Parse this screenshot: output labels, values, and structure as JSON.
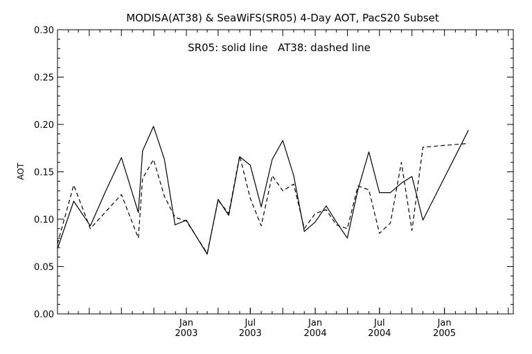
{
  "chart_data": {
    "type": "line",
    "title": "MODISA(AT38) & SeaWiFS(SR05) 4-Day AOT, PacS20 Subset",
    "annotation": "SR05: solid line   AT38: dashed line",
    "xlabel": "",
    "ylabel": "AOT",
    "ylim": [
      0.0,
      0.3
    ],
    "yticks": [
      "0.00",
      "0.05",
      "0.10",
      "0.15",
      "0.20",
      "0.25",
      "0.30"
    ],
    "xlim": [
      "2002-01-01",
      "2005-07-15"
    ],
    "xticks": [
      {
        "date": "2003-01-01",
        "month": "Jan",
        "year": "2003"
      },
      {
        "date": "2003-07-01",
        "month": "Jul",
        "year": "2003"
      },
      {
        "date": "2004-01-01",
        "month": "Jan",
        "year": "2004"
      },
      {
        "date": "2004-07-01",
        "month": "Jul",
        "year": "2004"
      },
      {
        "date": "2005-01-01",
        "month": "Jan",
        "year": "2005"
      }
    ],
    "grid": false,
    "series": [
      {
        "name": "SR05",
        "style": "solid",
        "points": [
          [
            "2002-01-01",
            0.069
          ],
          [
            "2002-02-16",
            0.119
          ],
          [
            "2002-04-04",
            0.093
          ],
          [
            "2002-05-18",
            0.13
          ],
          [
            "2002-07-01",
            0.165
          ],
          [
            "2002-08-18",
            0.107
          ],
          [
            "2002-08-30",
            0.172
          ],
          [
            "2002-09-30",
            0.198
          ],
          [
            "2002-10-31",
            0.163
          ],
          [
            "2002-11-30",
            0.094
          ],
          [
            "2003-01-01",
            0.099
          ],
          [
            "2003-03-01",
            0.063
          ],
          [
            "2003-04-01",
            0.121
          ],
          [
            "2003-05-01",
            0.104
          ],
          [
            "2003-06-01",
            0.166
          ],
          [
            "2003-07-01",
            0.157
          ],
          [
            "2003-08-01",
            0.113
          ],
          [
            "2003-09-01",
            0.163
          ],
          [
            "2003-10-01",
            0.183
          ],
          [
            "2003-11-01",
            0.146
          ],
          [
            "2003-12-01",
            0.087
          ],
          [
            "2004-01-01",
            0.097
          ],
          [
            "2004-02-01",
            0.114
          ],
          [
            "2004-03-01",
            0.097
          ],
          [
            "2004-04-01",
            0.08
          ],
          [
            "2004-05-01",
            0.131
          ],
          [
            "2004-06-01",
            0.171
          ],
          [
            "2004-07-01",
            0.128
          ],
          [
            "2004-08-01",
            0.128
          ],
          [
            "2004-09-01",
            0.138
          ],
          [
            "2004-10-01",
            0.145
          ],
          [
            "2004-11-01",
            0.099
          ],
          [
            "2005-03-10",
            0.194
          ]
        ]
      },
      {
        "name": "AT38",
        "style": "dashed",
        "points": [
          [
            "2002-01-01",
            0.074
          ],
          [
            "2002-02-16",
            0.136
          ],
          [
            "2002-04-04",
            0.09
          ],
          [
            "2002-05-18",
            0.108
          ],
          [
            "2002-07-01",
            0.126
          ],
          [
            "2002-08-18",
            0.08
          ],
          [
            "2002-08-30",
            0.143
          ],
          [
            "2002-09-30",
            0.163
          ],
          [
            "2002-10-31",
            0.124
          ],
          [
            "2002-11-30",
            0.102
          ],
          [
            "2003-01-01",
            0.098
          ],
          [
            "2003-03-01",
            0.064
          ],
          [
            "2003-04-01",
            0.12
          ],
          [
            "2003-05-01",
            0.106
          ],
          [
            "2003-06-01",
            0.167
          ],
          [
            "2003-07-01",
            0.122
          ],
          [
            "2003-08-01",
            0.093
          ],
          [
            "2003-09-01",
            0.146
          ],
          [
            "2003-10-01",
            0.13
          ],
          [
            "2003-11-01",
            0.137
          ],
          [
            "2003-12-01",
            0.09
          ],
          [
            "2004-01-01",
            0.106
          ],
          [
            "2004-02-01",
            0.11
          ],
          [
            "2004-03-01",
            0.094
          ],
          [
            "2004-04-01",
            0.09
          ],
          [
            "2004-05-01",
            0.135
          ],
          [
            "2004-06-01",
            0.131
          ],
          [
            "2004-07-01",
            0.085
          ],
          [
            "2004-08-01",
            0.096
          ],
          [
            "2004-09-01",
            0.16
          ],
          [
            "2004-10-01",
            0.088
          ],
          [
            "2004-11-01",
            0.176
          ],
          [
            "2005-03-10",
            0.18
          ]
        ]
      }
    ]
  }
}
